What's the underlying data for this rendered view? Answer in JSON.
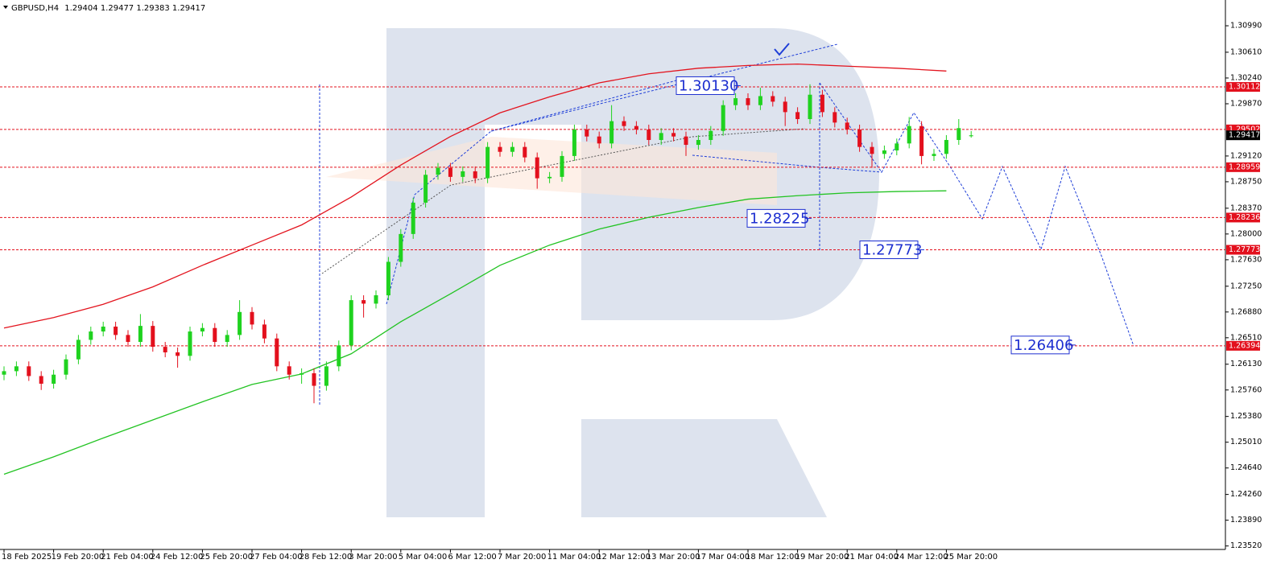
{
  "header": {
    "symbol": "GBPUSD,H4",
    "ohlc": [
      1.29404,
      1.29477,
      1.29383,
      1.29417
    ]
  },
  "chart_data": {
    "type": "candlestick",
    "categories": [
      "18 Feb 2025",
      "19 Feb 20:00",
      "21 Feb 04:00",
      "24 Feb 12:00",
      "25 Feb 20:00",
      "27 Feb 04:00",
      "28 Feb 12:00",
      "3 Mar 20:00",
      "5 Mar 04:00",
      "6 Mar 12:00",
      "7 Mar 20:00",
      "11 Mar 04:00",
      "12 Mar 12:00",
      "13 Mar 20:00",
      "17 Mar 04:00",
      "18 Mar 12:00",
      "19 Mar 20:00",
      "21 Mar 04:00",
      "24 Mar 12:00",
      "25 Mar 20:00"
    ],
    "candles": [
      [
        1.2598,
        1.261,
        1.259,
        1.2603
      ],
      [
        1.2603,
        1.2617,
        1.2596,
        1.261
      ],
      [
        1.261,
        1.2617,
        1.2589,
        1.2596
      ],
      [
        1.2596,
        1.2603,
        1.2576,
        1.2585
      ],
      [
        1.2585,
        1.2605,
        1.2578,
        1.2598
      ],
      [
        1.2598,
        1.2627,
        1.2591,
        1.262
      ],
      [
        1.262,
        1.2655,
        1.2613,
        1.2648
      ],
      [
        1.2648,
        1.2667,
        1.2641,
        1.266
      ],
      [
        1.266,
        1.2674,
        1.2653,
        1.2667
      ],
      [
        1.2667,
        1.2674,
        1.2648,
        1.2655
      ],
      [
        1.2655,
        1.2662,
        1.2638,
        1.2645
      ],
      [
        1.2645,
        1.2685,
        1.2638,
        1.2668
      ],
      [
        1.2668,
        1.2675,
        1.2631,
        1.2638
      ],
      [
        1.2638,
        1.2645,
        1.2623,
        1.263
      ],
      [
        1.263,
        1.2637,
        1.2608,
        1.2625
      ],
      [
        1.2625,
        1.2667,
        1.2618,
        1.266
      ],
      [
        1.266,
        1.2672,
        1.2653,
        1.2665
      ],
      [
        1.2665,
        1.2672,
        1.2638,
        1.2645
      ],
      [
        1.2645,
        1.2662,
        1.2638,
        1.2655
      ],
      [
        1.2655,
        1.2705,
        1.2648,
        1.2688
      ],
      [
        1.2688,
        1.2695,
        1.2663,
        1.267
      ],
      [
        1.267,
        1.2677,
        1.2643,
        1.265
      ],
      [
        1.265,
        1.2657,
        1.2603,
        1.261
      ],
      [
        1.261,
        1.2617,
        1.2591,
        1.2598
      ],
      [
        1.2598,
        1.2607,
        1.2585,
        1.26
      ],
      [
        1.26,
        1.2607,
        1.2557,
        1.2582
      ],
      [
        1.2582,
        1.2617,
        1.2575,
        1.261
      ],
      [
        1.261,
        1.2647,
        1.2603,
        1.264
      ],
      [
        1.264,
        1.2712,
        1.2633,
        1.2705
      ],
      [
        1.2705,
        1.2712,
        1.268,
        1.27
      ],
      [
        1.27,
        1.2719,
        1.2693,
        1.2712
      ],
      [
        1.2712,
        1.2767,
        1.2705,
        1.276
      ],
      [
        1.276,
        1.2807,
        1.2753,
        1.28
      ],
      [
        1.28,
        1.2852,
        1.2793,
        1.2845
      ],
      [
        1.2845,
        1.2892,
        1.2838,
        1.2885
      ],
      [
        1.2885,
        1.2902,
        1.2878,
        1.2895
      ],
      [
        1.2895,
        1.2902,
        1.2875,
        1.2882
      ],
      [
        1.2882,
        1.2897,
        1.2875,
        1.289
      ],
      [
        1.289,
        1.2897,
        1.2873,
        1.288
      ],
      [
        1.288,
        1.2932,
        1.2873,
        1.2925
      ],
      [
        1.2925,
        1.2932,
        1.2911,
        1.2918
      ],
      [
        1.2918,
        1.2932,
        1.2911,
        1.2925
      ],
      [
        1.2925,
        1.2932,
        1.2903,
        1.291
      ],
      [
        1.291,
        1.2917,
        1.2865,
        1.288
      ],
      [
        1.288,
        1.2889,
        1.2873,
        1.2882
      ],
      [
        1.2882,
        1.2919,
        1.2875,
        1.2912
      ],
      [
        1.2912,
        1.2957,
        1.2905,
        1.295
      ],
      [
        1.295,
        1.2957,
        1.2933,
        1.294
      ],
      [
        1.294,
        1.2947,
        1.2923,
        1.293
      ],
      [
        1.293,
        1.2985,
        1.2923,
        1.2962
      ],
      [
        1.2962,
        1.2969,
        1.2948,
        1.2955
      ],
      [
        1.2955,
        1.2962,
        1.2943,
        1.295
      ],
      [
        1.295,
        1.2957,
        1.2928,
        1.2935
      ],
      [
        1.2935,
        1.2952,
        1.2928,
        1.2945
      ],
      [
        1.2945,
        1.2952,
        1.2933,
        1.294
      ],
      [
        1.294,
        1.2947,
        1.2912,
        1.2928
      ],
      [
        1.2928,
        1.2942,
        1.2921,
        1.2935
      ],
      [
        1.2935,
        1.2955,
        1.2928,
        1.2948
      ],
      [
        1.2948,
        1.2992,
        1.2941,
        1.2985
      ],
      [
        1.2985,
        1.3002,
        1.2978,
        1.2995
      ],
      [
        1.2995,
        1.3002,
        1.2978,
        1.2985
      ],
      [
        1.2985,
        1.301,
        1.2978,
        1.2998
      ],
      [
        1.2998,
        1.3005,
        1.2983,
        1.299
      ],
      [
        1.299,
        1.2997,
        1.2955,
        1.2975
      ],
      [
        1.2975,
        1.2982,
        1.2958,
        1.2965
      ],
      [
        1.2965,
        1.3015,
        1.2958,
        1.3
      ],
      [
        1.3,
        1.3007,
        1.2968,
        1.2975
      ],
      [
        1.2975,
        1.2982,
        1.2953,
        1.296
      ],
      [
        1.296,
        1.2967,
        1.2943,
        1.295
      ],
      [
        1.295,
        1.2957,
        1.2918,
        1.2925
      ],
      [
        1.2925,
        1.2932,
        1.2895,
        1.2915
      ],
      [
        1.2915,
        1.2927,
        1.2908,
        1.292
      ],
      [
        1.292,
        1.2937,
        1.2913,
        1.293
      ],
      [
        1.293,
        1.2968,
        1.2923,
        1.2955
      ],
      [
        1.2955,
        1.2962,
        1.29,
        1.2912
      ],
      [
        1.2912,
        1.2922,
        1.2905,
        1.2915
      ],
      [
        1.2915,
        1.2942,
        1.2908,
        1.2935
      ],
      [
        1.2935,
        1.2965,
        1.2928,
        1.2952
      ],
      [
        1.29404,
        1.29477,
        1.29383,
        1.29417
      ]
    ],
    "up_color": "#1fd21f",
    "down_color": "#e3101d",
    "moving_averages": [
      {
        "color": "#e3141e",
        "values": [
          1.2665,
          1.268,
          1.2699,
          1.2724,
          1.2755,
          1.2784,
          1.2813,
          1.2853,
          1.2899,
          1.294,
          1.2974,
          1.2997,
          1.3017,
          1.303,
          1.3038,
          1.3042,
          1.3044,
          1.3041,
          1.3038,
          1.3034
        ]
      },
      {
        "color": "#22c322",
        "values": [
          1.2455,
          1.248,
          1.2507,
          1.2533,
          1.2559,
          1.2584,
          1.2599,
          1.2628,
          1.2674,
          1.2714,
          1.2755,
          1.2784,
          1.2807,
          1.2824,
          1.2838,
          1.285,
          1.2855,
          1.2859,
          1.2861,
          1.2862
        ]
      }
    ],
    "ylim": [
      1.2347,
      1.3136
    ],
    "yticks": [
      {
        "value": 1.3099,
        "label": "1.30990"
      },
      {
        "value": 1.3061,
        "label": "1.30610"
      },
      {
        "value": 1.3024,
        "label": "1.30240"
      },
      {
        "value": 1.2987,
        "label": "1.29870"
      },
      {
        "value": 1.2912,
        "label": "1.29120"
      },
      {
        "value": 1.2875,
        "label": "1.28750"
      },
      {
        "value": 1.2837,
        "label": "1.28370"
      },
      {
        "value": 1.28,
        "label": "1.28000"
      },
      {
        "value": 1.2763,
        "label": "1.27630"
      },
      {
        "value": 1.2725,
        "label": "1.27250"
      },
      {
        "value": 1.2688,
        "label": "1.26880"
      },
      {
        "value": 1.2651,
        "label": "1.26510"
      },
      {
        "value": 1.2613,
        "label": "1.26130"
      },
      {
        "value": 1.2576,
        "label": "1.25760"
      },
      {
        "value": 1.2538,
        "label": "1.25380"
      },
      {
        "value": 1.2501,
        "label": "1.25010"
      },
      {
        "value": 1.2464,
        "label": "1.24640"
      },
      {
        "value": 1.2426,
        "label": "1.24260"
      },
      {
        "value": 1.2389,
        "label": "1.23890"
      },
      {
        "value": 1.2352,
        "label": "1.23520"
      }
    ],
    "levels": [
      1.30112,
      1.29502,
      1.28959,
      1.28236,
      1.27773,
      1.26394
    ],
    "level_color": "#e3101d",
    "current_price": 1.29417,
    "annotations": [
      {
        "value": 1.3013,
        "label": "1.30130"
      },
      1.28225,
      1.27773,
      1.26406
    ]
  }
}
